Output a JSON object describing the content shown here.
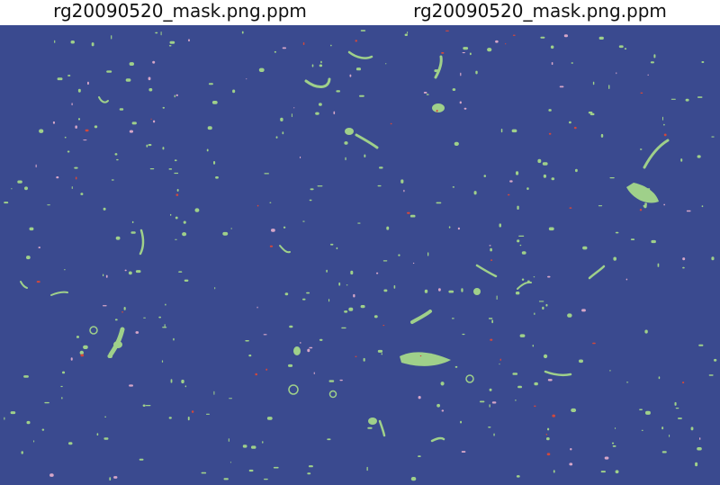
{
  "panels": [
    {
      "title": "rg20090520_mask.png.ppm"
    },
    {
      "title": "rg20090520_mask.png.ppm"
    }
  ],
  "colors": {
    "background": "#3a4a8f",
    "class_green": "#9fd08a",
    "class_pink": "#d6a6c8",
    "class_red": "#d2483c"
  }
}
